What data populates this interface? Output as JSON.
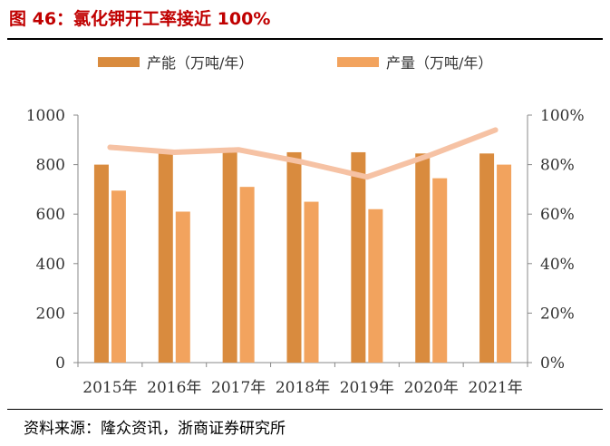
{
  "title": "图 46：氯化钾开工率接近 100%",
  "source": "资料来源：隆众资讯，浙商证券研究所",
  "colors": {
    "capacity": "#d98b3e",
    "output": "#f2a35e",
    "rate_line": "#f6c2a4",
    "title": "#c00000"
  },
  "chart_data": {
    "type": "bar",
    "categories": [
      "2015年",
      "2016年",
      "2017年",
      "2018年",
      "2019年",
      "2020年",
      "2021年"
    ],
    "series": [
      {
        "name": "产能（万吨/年）",
        "type": "bar",
        "axis": "left",
        "values": [
          800,
          850,
          850,
          850,
          850,
          845,
          845
        ]
      },
      {
        "name": "产量（万吨/年）",
        "type": "bar",
        "axis": "left",
        "values": [
          695,
          610,
          710,
          650,
          620,
          745,
          800
        ]
      },
      {
        "name": "",
        "type": "line",
        "axis": "right",
        "values": [
          0.87,
          0.85,
          0.86,
          0.81,
          0.75,
          0.84,
          0.94
        ]
      }
    ],
    "ylim": [
      0,
      1000
    ],
    "y2lim": [
      0,
      1
    ],
    "yticks": [
      "0",
      "200",
      "400",
      "600",
      "800",
      "1000"
    ],
    "y2ticks": [
      "0%",
      "20%",
      "40%",
      "60%",
      "80%",
      "100%"
    ],
    "legend_position": "top",
    "grid": false
  }
}
